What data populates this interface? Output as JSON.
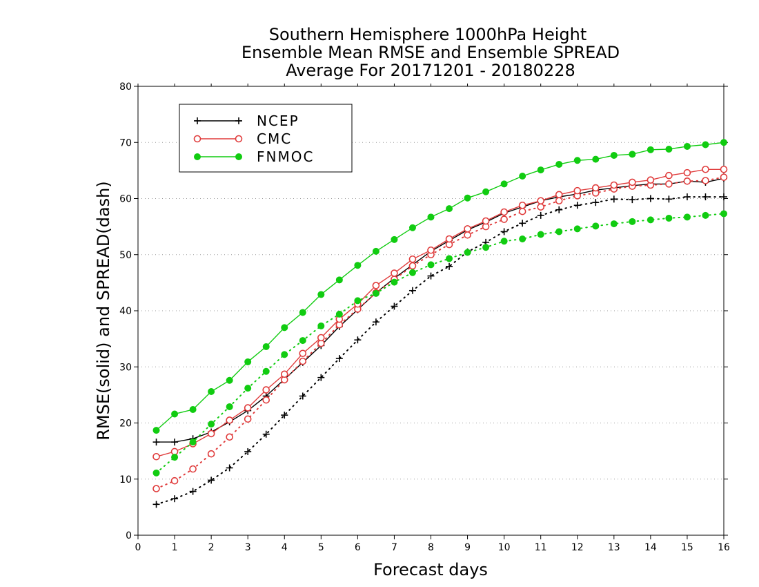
{
  "chart_data": {
    "type": "line",
    "title_lines": [
      "Southern Hemisphere 1000hPa Height",
      "Ensemble Mean RMSE and Ensemble SPREAD",
      "Average For 20171201 - 20180228"
    ],
    "xlabel": "Forecast days",
    "ylabel": "RMSE(solid) and SPREAD(dash)",
    "xlim": [
      0,
      16
    ],
    "ylim": [
      0,
      80
    ],
    "x_ticks": [
      "0",
      "1",
      "2",
      "3",
      "4",
      "5",
      "6",
      "7",
      "8",
      "9",
      "10",
      "11",
      "12",
      "13",
      "14",
      "15",
      "16"
    ],
    "y_ticks": [
      "0",
      "10",
      "20",
      "30",
      "40",
      "50",
      "60",
      "70",
      "80"
    ],
    "grid": "horizontal dotted at y ticks",
    "legend_position": "top-left",
    "x": [
      0.5,
      1,
      1.5,
      2,
      2.5,
      3,
      3.5,
      4,
      4.5,
      5,
      5.5,
      6,
      6.5,
      7,
      7.5,
      8,
      8.5,
      9,
      9.5,
      10,
      10.5,
      11,
      11.5,
      12,
      12.5,
      13,
      13.5,
      14,
      14.5,
      15,
      15.5,
      16
    ],
    "series": [
      {
        "name": "NCEP",
        "color": "#000000",
        "marker": "plus",
        "rmse": [
          16.6,
          16.6,
          17.2,
          18.4,
          20.2,
          22.2,
          24.8,
          27.8,
          30.8,
          33.8,
          37.2,
          40.2,
          43.2,
          45.8,
          48.2,
          50.6,
          52.5,
          54.4,
          55.8,
          57.4,
          58.5,
          59.6,
          60.3,
          60.8,
          61.5,
          61.9,
          62.3,
          62.6,
          62.6,
          63.1,
          62.9,
          63.6
        ],
        "spread": [
          5.5,
          6.5,
          7.8,
          9.8,
          12.0,
          14.9,
          18.0,
          21.4,
          24.8,
          28.1,
          31.5,
          34.8,
          38.0,
          40.8,
          43.6,
          46.2,
          47.9,
          50.5,
          52.2,
          54.1,
          55.6,
          57.0,
          58.0,
          58.8,
          59.3,
          59.9,
          59.8,
          60.0,
          59.9,
          60.3,
          60.3,
          60.3
        ]
      },
      {
        "name": "CMC",
        "color": "#e03c3c",
        "marker": "open-circle",
        "rmse": [
          14.0,
          14.9,
          16.3,
          18.1,
          20.5,
          22.7,
          25.9,
          28.7,
          32.4,
          35.2,
          38.5,
          41.2,
          44.5,
          46.7,
          49.2,
          50.8,
          52.8,
          54.6,
          56.0,
          57.6,
          58.8,
          59.6,
          60.7,
          61.4,
          61.9,
          62.4,
          62.9,
          63.3,
          64.1,
          64.6,
          65.2,
          65.2
        ],
        "spread": [
          8.3,
          9.7,
          11.8,
          14.5,
          17.5,
          20.7,
          24.1,
          27.7,
          31.0,
          34.2,
          37.5,
          40.3,
          43.2,
          45.6,
          48.0,
          50.0,
          51.8,
          53.5,
          55.0,
          56.3,
          57.7,
          58.5,
          59.6,
          60.5,
          61.0,
          61.7,
          62.2,
          62.4,
          62.6,
          63.1,
          63.2,
          63.8
        ]
      },
      {
        "name": "FNMOC",
        "color": "#11cc11",
        "marker": "filled-circle",
        "rmse": [
          18.7,
          21.6,
          22.4,
          25.6,
          27.6,
          30.9,
          33.6,
          37.0,
          39.7,
          42.9,
          45.5,
          48.1,
          50.6,
          52.7,
          54.8,
          56.7,
          58.2,
          60.1,
          61.2,
          62.6,
          64.0,
          65.1,
          66.1,
          66.8,
          67.0,
          67.7,
          67.9,
          68.7,
          68.8,
          69.3,
          69.6,
          70.0
        ],
        "spread": [
          11.1,
          13.9,
          16.6,
          19.8,
          22.9,
          26.2,
          29.2,
          32.2,
          34.7,
          37.3,
          39.4,
          41.8,
          43.1,
          45.1,
          46.8,
          48.2,
          49.3,
          50.4,
          51.3,
          52.4,
          52.8,
          53.6,
          54.1,
          54.6,
          55.1,
          55.5,
          55.9,
          56.2,
          56.5,
          56.7,
          57.0,
          57.3
        ]
      }
    ]
  }
}
